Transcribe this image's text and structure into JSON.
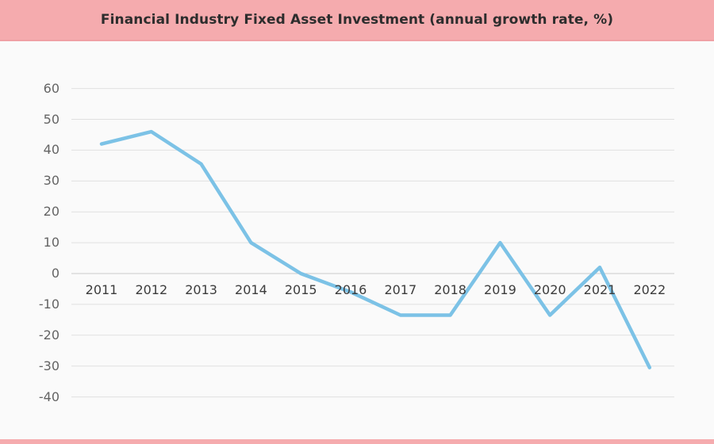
{
  "header": {
    "title": "Financial Industry Fixed Asset Investment (annual growth rate, %)"
  },
  "colors": {
    "banner_pink": "#f5abae",
    "banner_edge_pink": "#efa0a4",
    "line_blue": "#7cc2e6",
    "gridline_gray": "#e0e0e0",
    "zero_line_gray": "#cbcbcb",
    "background": "#fafafa",
    "y_label_gray": "#646464",
    "x_label_dark": "#3c3c3c"
  },
  "chart_data": {
    "type": "line",
    "title": "Financial Industry Fixed Asset Investment (annual growth rate, %)",
    "categories": [
      "2011",
      "2012",
      "2013",
      "2014",
      "2015",
      "2016",
      "2017",
      "2018",
      "2019",
      "2020",
      "2021",
      "2022"
    ],
    "series": [
      {
        "name": "annual growth rate (%)",
        "values": [
          42,
          46,
          35.5,
          10,
          0,
          -6,
          -13.5,
          -13.5,
          10,
          -13.5,
          2,
          -30.5
        ]
      }
    ],
    "xlabel": "",
    "ylabel": "",
    "ylim": [
      -40,
      60
    ],
    "yticks": [
      60,
      50,
      40,
      30,
      20,
      10,
      0,
      -10,
      -20,
      -30,
      -40
    ],
    "grid": "horizontal-only",
    "legend": "none",
    "line_color": "#7cc2e6",
    "marker": "none"
  }
}
